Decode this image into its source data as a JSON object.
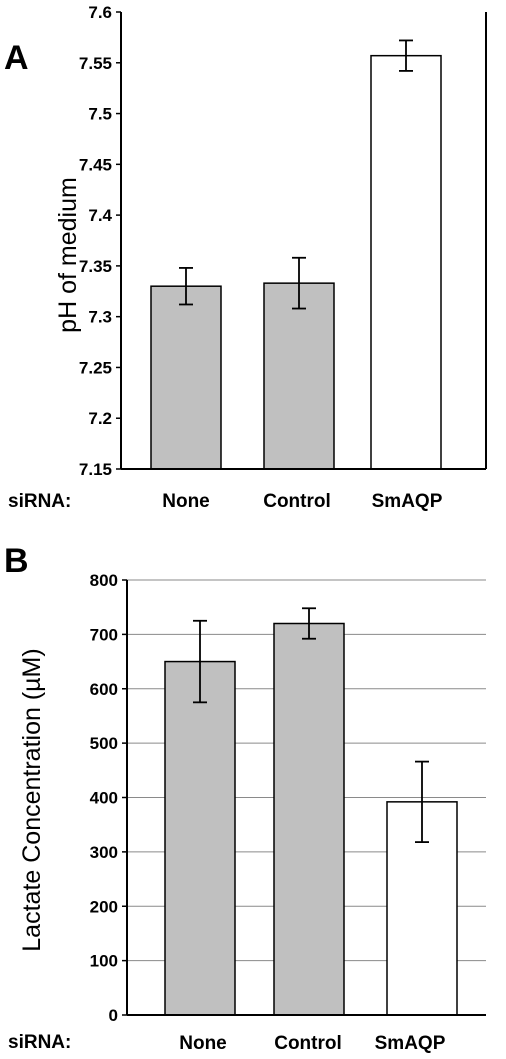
{
  "chart_data": [
    {
      "panel_label": "A",
      "type": "bar",
      "categories": [
        "None",
        "Control",
        "SmAQP"
      ],
      "values": [
        7.33,
        7.333,
        7.557
      ],
      "errors": [
        0.018,
        0.025,
        0.015
      ],
      "bar_colors": [
        "#c0c0c0",
        "#c0c0c0",
        "#ffffff"
      ],
      "ylabel": "pH of medium",
      "category_axis_label": "siRNA:",
      "ylim": [
        7.15,
        7.6
      ],
      "yticks": [
        "7.15",
        "7.2",
        "7.25",
        "7.3",
        "7.35",
        "7.4",
        "7.45",
        "7.5",
        "7.55",
        "7.6"
      ],
      "grid": false
    },
    {
      "panel_label": "B",
      "type": "bar",
      "categories": [
        "None",
        "Control",
        "SmAQP"
      ],
      "values": [
        650,
        720,
        392
      ],
      "errors": [
        75,
        28,
        74
      ],
      "bar_colors": [
        "#c0c0c0",
        "#c0c0c0",
        "#ffffff"
      ],
      "ylabel": "Lactate Concentration (µM)",
      "category_axis_label": "siRNA:",
      "ylim": [
        0,
        800
      ],
      "yticks": [
        "0",
        "100",
        "200",
        "300",
        "400",
        "500",
        "600",
        "700",
        "800"
      ],
      "grid": true
    }
  ]
}
